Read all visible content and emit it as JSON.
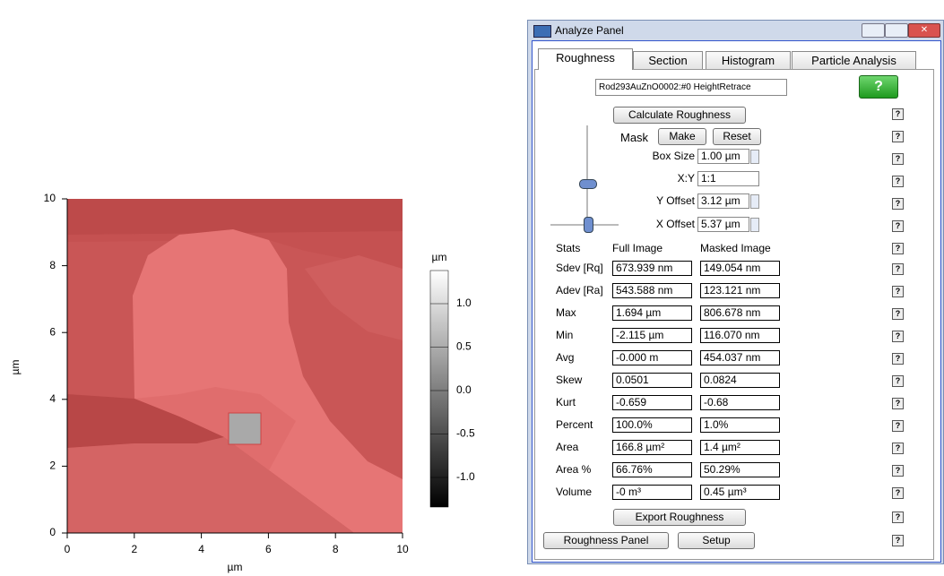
{
  "plot": {
    "y_label": "µm",
    "x_label": "µm",
    "x_ticks": [
      "0",
      "2",
      "4",
      "6",
      "8",
      "10"
    ],
    "y_ticks": [
      "0",
      "2",
      "4",
      "6",
      "8",
      "10"
    ],
    "colorbar": {
      "label": "µm",
      "ticks": [
        "1.0",
        "0.5",
        "0.0",
        "-0.5",
        "-1.0"
      ]
    }
  },
  "window": {
    "title": "Analyze Panel",
    "tabs": [
      "Roughness",
      "Section",
      "Histogram",
      "Particle Analysis"
    ],
    "wave": "Rod293AuZnO0002:#0 HeightRetrace",
    "help": "?",
    "calculate": "Calculate Roughness",
    "mask": {
      "label": "Mask",
      "make": "Make",
      "reset": "Reset"
    },
    "fields": [
      {
        "label": "Box Size",
        "value": "1.00 µm"
      },
      {
        "label": "X:Y",
        "value": "1:1"
      },
      {
        "label": "Y Offset",
        "value": "3.12 µm"
      },
      {
        "label": "X Offset",
        "value": "5.37 µm"
      }
    ],
    "stats": {
      "header": [
        "Stats",
        "Full Image",
        "Masked Image"
      ],
      "rows": [
        [
          "Sdev [Rq]",
          "673.939 nm",
          "149.054 nm"
        ],
        [
          "Adev [Ra]",
          "543.588 nm",
          "123.121 nm"
        ],
        [
          "Max",
          "1.694 µm",
          "806.678 nm"
        ],
        [
          "Min",
          "-2.115 µm",
          "116.070 nm"
        ],
        [
          "Avg",
          "-0.000 m",
          "454.037 nm"
        ],
        [
          "Skew",
          "0.0501",
          "0.0824"
        ],
        [
          "Kurt",
          "-0.659",
          "-0.68"
        ],
        [
          "Percent",
          "100.0%",
          "1.0%"
        ],
        [
          "Area",
          "166.8 µm²",
          "1.4 µm²"
        ],
        [
          "Area %",
          "66.76%",
          "50.29%"
        ],
        [
          "Volume",
          "-0 m³",
          "0.45 µm³"
        ]
      ]
    },
    "export": "Export Roughness",
    "buttons": [
      "Roughness Panel",
      "Setup"
    ]
  }
}
